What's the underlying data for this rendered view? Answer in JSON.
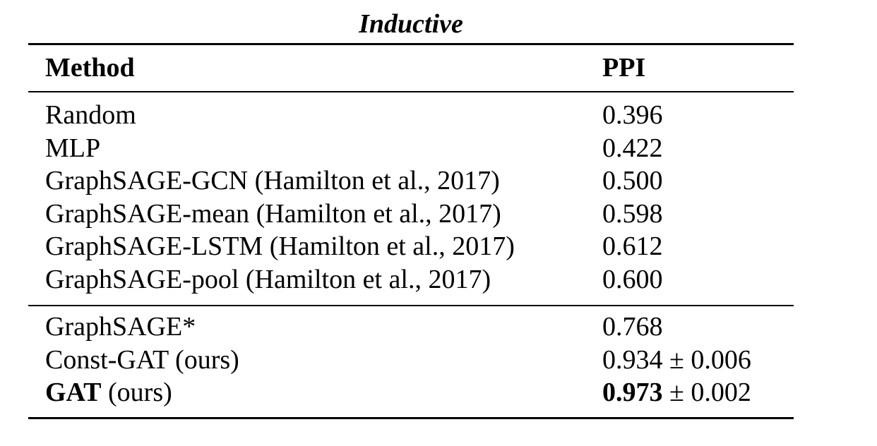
{
  "table": {
    "caption": "Inductive",
    "headers": {
      "method": "Method",
      "ppi": "PPI"
    },
    "groups": [
      {
        "rows": [
          {
            "method": "Random",
            "ppi": "0.396"
          },
          {
            "method": "MLP",
            "ppi": "0.422"
          },
          {
            "method": "GraphSAGE-GCN (Hamilton et al., 2017)",
            "ppi": "0.500"
          },
          {
            "method": "GraphSAGE-mean (Hamilton et al., 2017)",
            "ppi": "0.598"
          },
          {
            "method": "GraphSAGE-LSTM (Hamilton et al., 2017)",
            "ppi": "0.612"
          },
          {
            "method": "GraphSAGE-pool (Hamilton et al., 2017)",
            "ppi": "0.600"
          }
        ]
      },
      {
        "rows": [
          {
            "method": "GraphSAGE*",
            "ppi": "0.768"
          },
          {
            "method": "Const-GAT (ours)",
            "ppi": "0.934 ± 0.006"
          },
          {
            "method_bold": "GAT",
            "method_rest": " (ours)",
            "ppi_bold": "0.973",
            "ppi_rest": " ± 0.002"
          }
        ]
      }
    ]
  }
}
